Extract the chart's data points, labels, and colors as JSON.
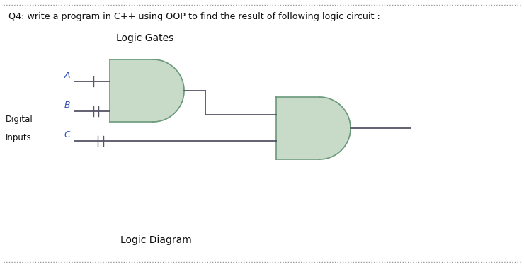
{
  "title": "Q4: write a program in C++ using OOP to find the result of following logic circuit :",
  "logic_gates_label": "Logic Gates",
  "logic_diagram_label": "Logic Diagram",
  "input_labels": [
    "A",
    "B",
    "C"
  ],
  "gate_fill_color": "#c8dbc8",
  "gate_edge_color": "#6a9a7a",
  "line_color": "#555566",
  "text_color_blue": "#3355bb",
  "text_color_black": "#111111",
  "bg_color": "#ffffff",
  "dot_border_color": "#999999",
  "figsize": [
    7.4,
    3.77
  ],
  "dpi": 100,
  "xlim": [
    0,
    7.4
  ],
  "ylim": [
    0,
    3.77
  ]
}
